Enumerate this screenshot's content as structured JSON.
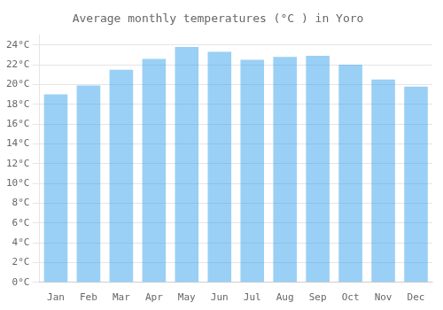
{
  "chart_data": {
    "type": "bar",
    "title": "Average monthly temperatures (°C ) in Yoro",
    "categories": [
      "Jan",
      "Feb",
      "Mar",
      "Apr",
      "May",
      "Jun",
      "Jul",
      "Aug",
      "Sep",
      "Oct",
      "Nov",
      "Dec"
    ],
    "values": [
      19.0,
      19.9,
      21.5,
      22.6,
      23.8,
      23.3,
      22.5,
      22.8,
      22.9,
      22.0,
      20.5,
      19.8
    ],
    "ylim": [
      0,
      25
    ],
    "yticks": [
      {
        "value": 0,
        "label": "0°C"
      },
      {
        "value": 2,
        "label": "2°C"
      },
      {
        "value": 4,
        "label": "4°C"
      },
      {
        "value": 6,
        "label": "6°C"
      },
      {
        "value": 8,
        "label": "8°C"
      },
      {
        "value": 10,
        "label": "10°C"
      },
      {
        "value": 12,
        "label": "12°C"
      },
      {
        "value": 14,
        "label": "14°C"
      },
      {
        "value": 16,
        "label": "16°C"
      },
      {
        "value": 18,
        "label": "18°C"
      },
      {
        "value": 20,
        "label": "20°C"
      },
      {
        "value": 22,
        "label": "22°C"
      },
      {
        "value": 24,
        "label": "24°C"
      }
    ],
    "grid": true
  }
}
